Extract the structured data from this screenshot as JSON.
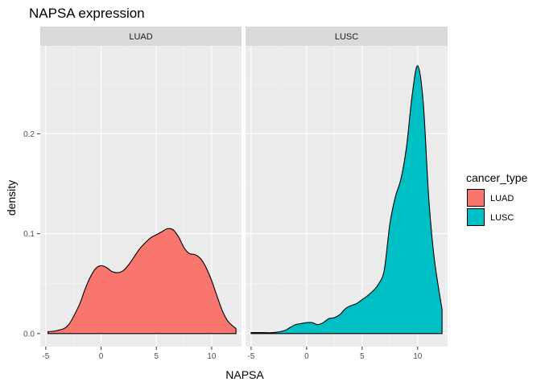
{
  "chart_data": {
    "type": "area",
    "title": "NAPSA expression",
    "xlabel": "NAPSA",
    "ylabel": "density",
    "xlim": [
      -5.5,
      12.7
    ],
    "ylim": [
      -0.013,
      0.288
    ],
    "x_ticks": [
      -5,
      0,
      5,
      10
    ],
    "y_ticks": [
      0.0,
      0.1,
      0.2
    ],
    "y_tick_labels": [
      "0.0",
      "0.1",
      "0.2"
    ],
    "grid": true,
    "legend": {
      "title": "cancer_type",
      "position": "right",
      "entries": [
        {
          "label": "LUAD",
          "color": "#F8766D"
        },
        {
          "label": "LUSC",
          "color": "#00BFC4"
        }
      ]
    },
    "facets": [
      {
        "label": "LUAD",
        "color": "#F8766D",
        "x": [
          -4.8,
          -4.0,
          -3.0,
          -2.0,
          -1.5,
          -1.0,
          -0.5,
          0.0,
          0.5,
          1.0,
          1.5,
          2.0,
          2.5,
          3.0,
          3.5,
          4.0,
          4.5,
          5.0,
          5.5,
          6.0,
          6.5,
          7.0,
          7.5,
          8.0,
          8.5,
          9.0,
          9.5,
          10.0,
          10.5,
          11.0,
          11.5,
          12.2
        ],
        "y": [
          0.002,
          0.003,
          0.008,
          0.028,
          0.043,
          0.056,
          0.065,
          0.068,
          0.066,
          0.062,
          0.061,
          0.063,
          0.069,
          0.077,
          0.085,
          0.091,
          0.096,
          0.099,
          0.102,
          0.105,
          0.104,
          0.097,
          0.086,
          0.08,
          0.079,
          0.075,
          0.066,
          0.053,
          0.037,
          0.022,
          0.012,
          0.005
        ]
      },
      {
        "label": "LUSC",
        "color": "#00BFC4",
        "x": [
          -5.0,
          -4.0,
          -3.0,
          -2.0,
          -1.5,
          -1.0,
          -0.5,
          0.0,
          0.5,
          1.0,
          1.5,
          2.0,
          2.5,
          3.0,
          3.5,
          4.0,
          4.5,
          5.0,
          5.5,
          6.0,
          6.5,
          7.0,
          7.5,
          8.0,
          8.5,
          9.0,
          9.5,
          10.0,
          10.5,
          11.0,
          11.5,
          12.2
        ],
        "y": [
          0.001,
          0.001,
          0.001,
          0.003,
          0.006,
          0.009,
          0.01,
          0.011,
          0.011,
          0.009,
          0.011,
          0.015,
          0.016,
          0.019,
          0.025,
          0.028,
          0.03,
          0.034,
          0.038,
          0.043,
          0.05,
          0.064,
          0.11,
          0.137,
          0.155,
          0.187,
          0.238,
          0.268,
          0.232,
          0.136,
          0.075,
          0.024
        ]
      }
    ]
  }
}
